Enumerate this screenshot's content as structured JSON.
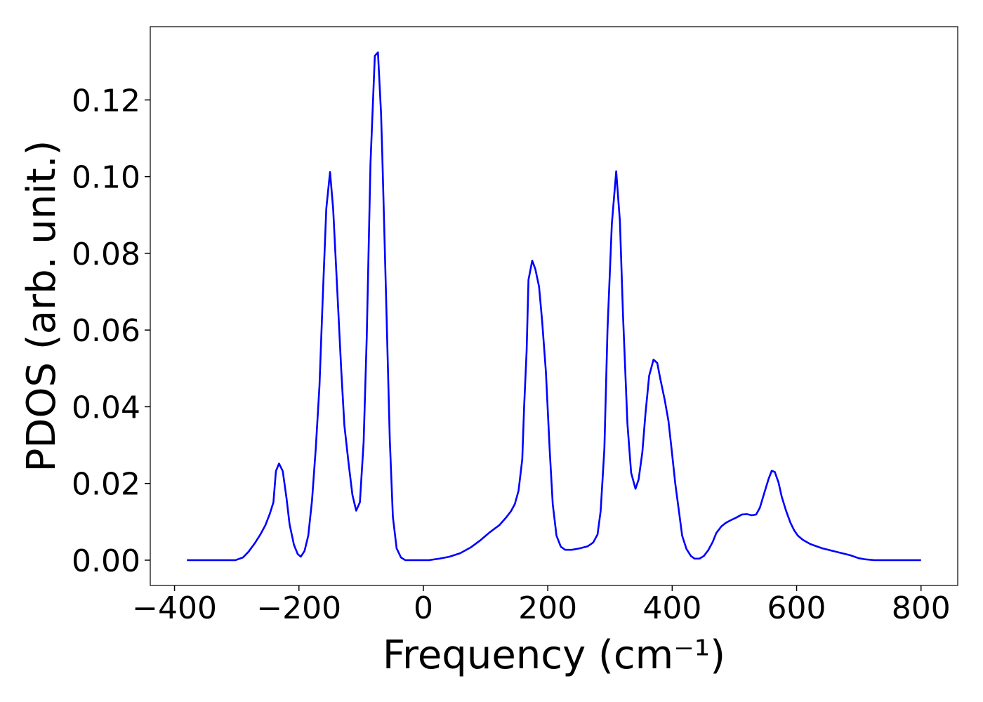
{
  "chart_data": {
    "type": "line",
    "xlabel": "Frequency (cm⁻¹)",
    "ylabel": "PDOS (arb. unit.)",
    "color": "#0000ff",
    "xlim": [
      -439,
      859
    ],
    "ylim": [
      -0.0066,
      0.1391
    ],
    "xticks": [
      {
        "value": -400,
        "label": "−400"
      },
      {
        "value": -200,
        "label": "−200"
      },
      0,
      200,
      400,
      600,
      800
    ],
    "yticks": [
      {
        "value": 0,
        "label": "0.00"
      },
      {
        "value": 0.02,
        "label": "0.02"
      },
      {
        "value": 0.04,
        "label": "0.04"
      },
      {
        "value": 0.06,
        "label": "0.06"
      },
      {
        "value": 0.08,
        "label": "0.08"
      },
      {
        "value": 0.1,
        "label": "0.10"
      },
      {
        "value": 0.12,
        "label": "0.12"
      }
    ],
    "x": [
      -380,
      -302,
      -290,
      -281,
      -271,
      -262,
      -254,
      -247,
      -241,
      -237,
      -232,
      -226,
      -220,
      -215,
      -208,
      -202,
      -197,
      -191,
      -185,
      -179,
      -173,
      -167,
      -162,
      -156,
      -150,
      -145,
      -138,
      -132,
      -127,
      -120,
      -114,
      -108,
      -102,
      -96,
      -91,
      -85,
      -78,
      -73,
      -68,
      -66,
      -60,
      -54,
      -49,
      -43,
      -36,
      -29,
      9,
      26,
      42,
      59,
      76,
      91,
      107,
      122,
      133,
      141,
      147,
      153,
      159,
      162,
      166,
      169,
      175,
      180,
      186,
      191,
      197,
      203,
      208,
      214,
      221,
      228,
      239,
      252,
      264,
      273,
      280,
      285,
      291,
      296,
      303,
      310,
      316,
      321,
      328,
      334,
      341,
      346,
      352,
      357,
      363,
      370,
      376,
      381,
      388,
      394,
      399,
      405,
      411,
      416,
      423,
      430,
      436,
      444,
      451,
      458,
      465,
      471,
      479,
      486,
      494,
      503,
      512,
      520,
      528,
      535,
      541,
      548,
      555,
      560,
      565,
      571,
      576,
      583,
      590,
      596,
      602,
      610,
      622,
      641,
      663,
      686,
      700,
      711,
      725,
      800
    ],
    "values": [
      0,
      0,
      0.0007,
      0.0022,
      0.0044,
      0.0067,
      0.0091,
      0.012,
      0.0151,
      0.0232,
      0.0252,
      0.0232,
      0.0162,
      0.0093,
      0.004,
      0.0016,
      0.0009,
      0.0024,
      0.0064,
      0.0155,
      0.029,
      0.0454,
      0.0673,
      0.0917,
      0.1012,
      0.0916,
      0.0691,
      0.0496,
      0.0352,
      0.025,
      0.017,
      0.0129,
      0.0151,
      0.0308,
      0.0582,
      0.1034,
      0.1315,
      0.1324,
      0.1165,
      0.1056,
      0.0691,
      0.0317,
      0.0113,
      0.0031,
      0.0007,
      0,
      0,
      0.0004,
      0.0009,
      0.0018,
      0.0033,
      0.0051,
      0.0073,
      0.0091,
      0.0111,
      0.0128,
      0.0146,
      0.0181,
      0.0263,
      0.04,
      0.0545,
      0.0731,
      0.0781,
      0.0759,
      0.0713,
      0.0622,
      0.0491,
      0.029,
      0.0146,
      0.0064,
      0.0035,
      0.0027,
      0.0027,
      0.0031,
      0.0036,
      0.0046,
      0.0067,
      0.0128,
      0.029,
      0.06,
      0.0877,
      0.1014,
      0.0883,
      0.0637,
      0.0357,
      0.0228,
      0.0186,
      0.021,
      0.0281,
      0.0381,
      0.0481,
      0.0523,
      0.0514,
      0.0472,
      0.0418,
      0.0363,
      0.029,
      0.0199,
      0.0126,
      0.0064,
      0.0029,
      0.0011,
      0.0004,
      0.0004,
      0.0011,
      0.0026,
      0.0047,
      0.0071,
      0.0088,
      0.0097,
      0.0104,
      0.0111,
      0.0119,
      0.012,
      0.0117,
      0.0119,
      0.0137,
      0.0175,
      0.0212,
      0.0233,
      0.023,
      0.0202,
      0.0166,
      0.0129,
      0.0098,
      0.0078,
      0.0064,
      0.0053,
      0.0042,
      0.0031,
      0.0022,
      0.0013,
      0.0005,
      0.0002,
      0,
      0
    ]
  }
}
